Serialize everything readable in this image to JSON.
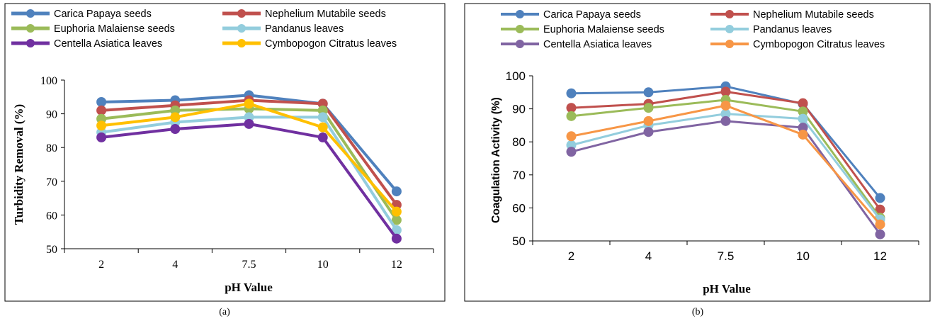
{
  "chart_data": [
    {
      "type": "line",
      "panel_label": "(a)",
      "xlabel": "pH Value",
      "ylabel": "Turbidity Removal (%)",
      "categories": [
        "2",
        "4",
        "7.5",
        "10",
        "12"
      ],
      "ylim": [
        50,
        100
      ],
      "yticks": [
        50,
        60,
        70,
        80,
        90,
        100
      ],
      "grid": false,
      "legend_position": "top",
      "series": [
        {
          "name": "Carica Papaya seeds",
          "color": "#4F81BD",
          "values": [
            93.5,
            94,
            95.5,
            93,
            67
          ]
        },
        {
          "name": "Nephelium Mutabile seeds",
          "color": "#C0504D",
          "values": [
            91,
            92.5,
            94,
            93,
            63
          ]
        },
        {
          "name": "Euphoria Malaiense seeds",
          "color": "#9BBB59",
          "values": [
            88.5,
            91,
            91.5,
            91,
            58.5
          ]
        },
        {
          "name": "Pandanus leaves",
          "color": "#93CDDD",
          "values": [
            84.5,
            87.5,
            89,
            89,
            55.5
          ]
        },
        {
          "name": "Centella Asiatica leaves",
          "color": "#7030A0",
          "values": [
            83,
            85.5,
            87,
            83,
            53
          ]
        },
        {
          "name": "Cymbopogon Citratus leaves",
          "color": "#FFC000",
          "values": [
            86.5,
            89,
            93,
            86,
            61
          ]
        }
      ]
    },
    {
      "type": "line",
      "panel_label": "(b)",
      "xlabel": "pH Value",
      "ylabel": "Coagulation Activity (%)",
      "categories": [
        "2",
        "4",
        "7.5",
        "10",
        "12"
      ],
      "ylim": [
        50,
        100
      ],
      "yticks": [
        50,
        60,
        70,
        80,
        90,
        100
      ],
      "grid": false,
      "legend_position": "top",
      "series": [
        {
          "name": "Carica Papaya seeds",
          "color": "#4F81BD",
          "values": [
            94.7,
            95,
            96.8,
            91.5,
            63
          ]
        },
        {
          "name": "Nephelium Mutabile seeds",
          "color": "#C0504D",
          "values": [
            90.3,
            91.5,
            95.2,
            91.7,
            59.5
          ]
        },
        {
          "name": "Euphoria Malaiense seeds",
          "color": "#9BBB59",
          "values": [
            87.8,
            90.3,
            92.7,
            89.2,
            57
          ]
        },
        {
          "name": "Pandanus leaves",
          "color": "#93CDDD",
          "values": [
            79,
            85,
            88.5,
            87,
            56.5
          ]
        },
        {
          "name": "Centella Asiatica leaves",
          "color": "#8064A2",
          "values": [
            77,
            83,
            86.3,
            84.3,
            52
          ]
        },
        {
          "name": "Cymbopogon Citratus leaves",
          "color": "#F79646",
          "values": [
            81.7,
            86.3,
            91,
            82.2,
            55
          ]
        }
      ]
    }
  ]
}
